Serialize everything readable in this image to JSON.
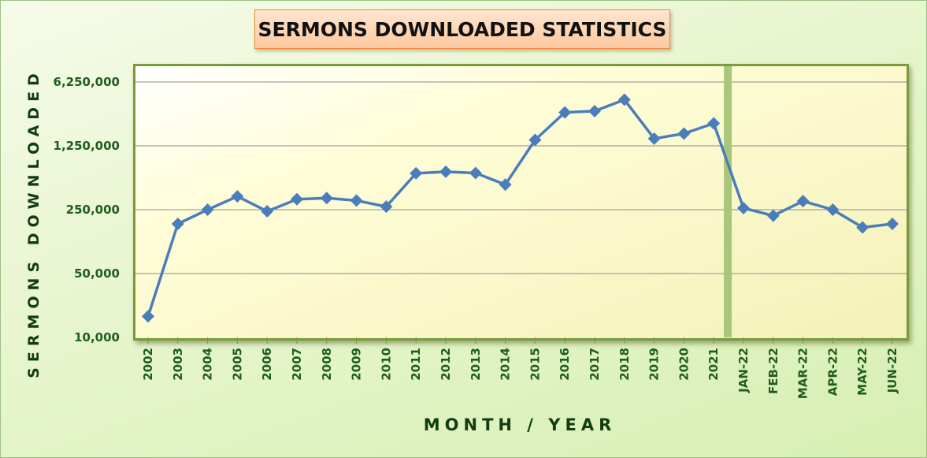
{
  "chart_data": {
    "type": "line",
    "title": "SERMONS DOWNLOADED STATISTICS",
    "xlabel": "MONTH / YEAR",
    "ylabel": "SERMONS DOWNLOADED",
    "yscale": "log",
    "ylim": [
      10000,
      6250000
    ],
    "yticks": [
      "10,000",
      "50,000",
      "250,000",
      "1,250,000",
      "6,250,000"
    ],
    "ytick_values": [
      10000,
      50000,
      250000,
      1250000,
      6250000
    ],
    "grid": "horizontal",
    "legend": "none",
    "categories": [
      "2002",
      "2003",
      "2004",
      "2005",
      "2006",
      "2007",
      "2008",
      "2009",
      "2010",
      "2011",
      "2012",
      "2013",
      "2014",
      "2015",
      "2016",
      "2017",
      "2018",
      "2019",
      "2020",
      "2021",
      "JAN-22",
      "FEB-22",
      "MAR-22",
      "APR-22",
      "MAY-22",
      "JUN-22"
    ],
    "series": [
      {
        "values": [
          17000,
          175000,
          250000,
          350000,
          240000,
          325000,
          335000,
          315000,
          270000,
          625000,
          650000,
          630000,
          470000,
          1450000,
          2900000,
          3000000,
          4000000,
          1500000,
          1700000,
          2200000,
          260000,
          215000,
          310000,
          250000,
          160000,
          175000
        ]
      }
    ],
    "separator_after": "2021",
    "colors": {
      "line": "#4a7ebb",
      "marker": "#4a7ebb",
      "separator": "#a9c67a",
      "grid": "#8c8c8c"
    }
  }
}
